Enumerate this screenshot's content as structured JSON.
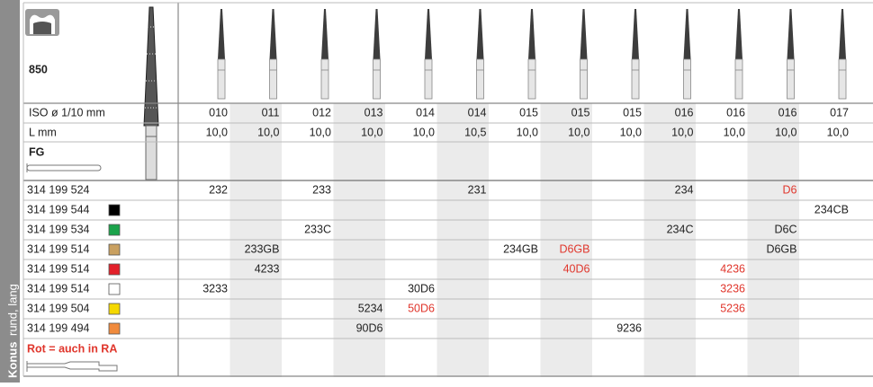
{
  "side_label": {
    "bold": "Konus",
    "text": "rund, lang"
  },
  "product_label": "850",
  "shank_label": "FG",
  "iso_label": "ISO ø 1/10 mm",
  "iso": [
    "010",
    "011",
    "012",
    "013",
    "014",
    "014",
    "015",
    "015",
    "015",
    "016",
    "016",
    "016",
    "017"
  ],
  "length_label": "L mm",
  "length": [
    "10,0",
    "10,0",
    "10,0",
    "10,0",
    "10,0",
    "10,5",
    "10,0",
    "10,0",
    "10,0",
    "10,0",
    "10,0",
    "10,0",
    "10,0"
  ],
  "rows": [
    {
      "code": "314 199 524",
      "cells": [
        "232",
        null,
        "233",
        null,
        null,
        "231",
        null,
        null,
        null,
        "234",
        null,
        {
          "text": "D6",
          "color": "#e0362c"
        },
        null
      ]
    },
    {
      "code": "314 199 544",
      "swatch": "#000000",
      "cells": [
        null,
        null,
        null,
        null,
        null,
        null,
        null,
        null,
        null,
        null,
        null,
        null,
        "234CB"
      ]
    },
    {
      "code": "314 199 534",
      "swatch": "#1aa34a",
      "cells": [
        null,
        null,
        "233C",
        null,
        null,
        null,
        null,
        null,
        null,
        "234C",
        null,
        "D6C",
        null
      ]
    },
    {
      "code": "314 199 514",
      "swatch": "#c9a060",
      "cells": [
        null,
        "233GB",
        null,
        null,
        null,
        null,
        "234GB",
        {
          "text": "D6GB",
          "color": "#e0362c"
        },
        null,
        null,
        null,
        "D6GB",
        null
      ]
    },
    {
      "code": "314 199 514",
      "swatch": "#e3202a",
      "cells": [
        null,
        "4233",
        null,
        null,
        null,
        null,
        null,
        {
          "text": "40D6",
          "color": "#e0362c"
        },
        null,
        null,
        {
          "text": "4236",
          "color": "#e0362c"
        },
        null,
        null
      ]
    },
    {
      "code": "314 199 514",
      "swatch": "#ffffff",
      "cells": [
        "3233",
        null,
        null,
        null,
        "30D6",
        null,
        null,
        null,
        null,
        null,
        {
          "text": "3236",
          "color": "#e0362c"
        },
        null,
        null
      ]
    },
    {
      "code": "314 199 504",
      "swatch": "#f5d800",
      "cells": [
        null,
        null,
        null,
        "5234",
        {
          "text": "50D6",
          "color": "#e0362c"
        },
        null,
        null,
        null,
        null,
        null,
        {
          "text": "5236",
          "color": "#e0362c"
        },
        null,
        null
      ]
    },
    {
      "code": "314 199 494",
      "swatch": "#f08a3c",
      "cells": [
        null,
        null,
        null,
        "90D6",
        null,
        null,
        null,
        null,
        "9236",
        null,
        null,
        null,
        null
      ]
    }
  ],
  "note": "Rot = auch in RA"
}
